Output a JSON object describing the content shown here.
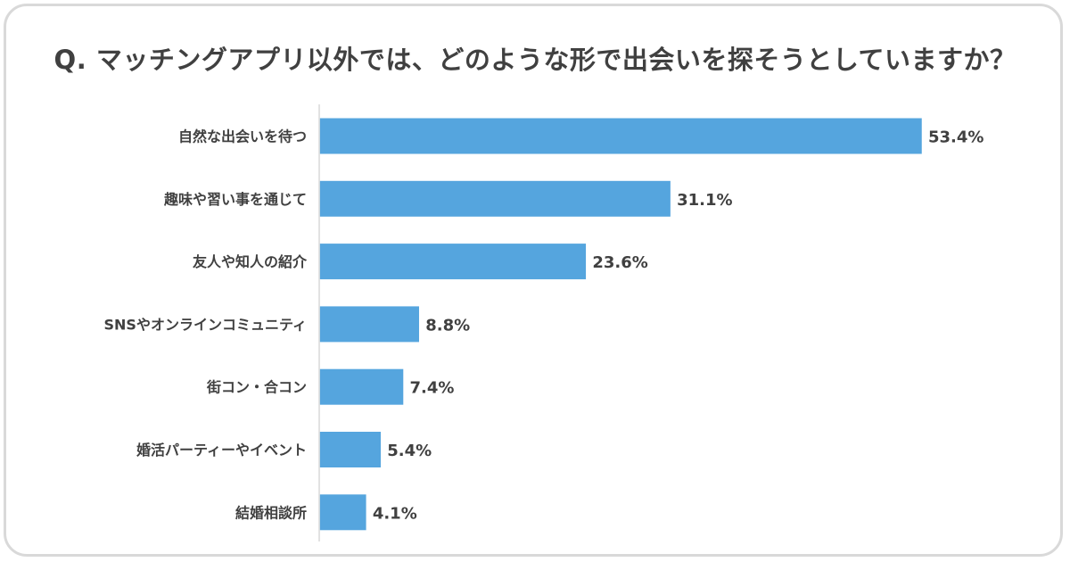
{
  "chart_data": {
    "type": "bar",
    "orientation": "horizontal",
    "title": "Q. マッチングアプリ以外では、どのような形で出会いを探そうとしていますか？",
    "categories": [
      "自然な出会いを待つ",
      "趣味や習い事を通じて",
      "友人や知人の紹介",
      "SNSやオンラインコミュニティ",
      "街コン・合コン",
      "婚活パーティーやイベント",
      "結婚相談所"
    ],
    "values": [
      53.4,
      31.1,
      23.6,
      8.8,
      7.4,
      5.4,
      4.1
    ],
    "value_labels": [
      "53.4%",
      "31.1%",
      "23.6%",
      "8.8%",
      "7.4%",
      "5.4%",
      "4.1%"
    ],
    "unit": "%",
    "xlim": [
      0,
      60
    ],
    "grid": false,
    "legend": "none",
    "bar_color": "#55a5de",
    "axis_color": "#d9d9d9",
    "text_color": "#404040"
  }
}
